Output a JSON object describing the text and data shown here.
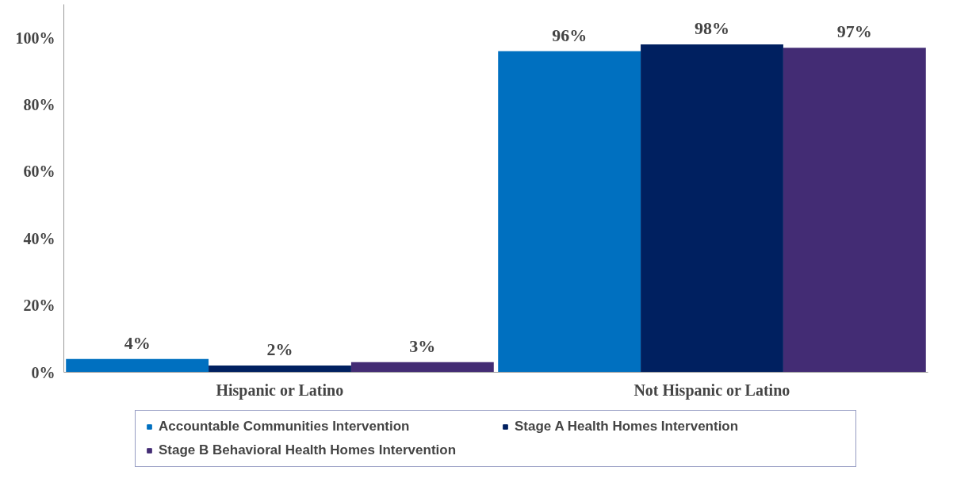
{
  "chart_data": {
    "type": "bar",
    "categories": [
      "Hispanic or Latino",
      "Not Hispanic or Latino"
    ],
    "series": [
      {
        "name": "Accountable Communities Intervention",
        "color": "#0070c0",
        "values": [
          4,
          96
        ]
      },
      {
        "name": "Stage A Health Homes Intervention",
        "color": "#002060",
        "values": [
          2,
          98
        ]
      },
      {
        "name": "Stage B Behavioral Health Homes Intervention",
        "color": "#432c74",
        "values": [
          3,
          97
        ]
      }
    ],
    "ylim": [
      0,
      110
    ],
    "yticks": [
      {
        "value": 0,
        "label": "0%"
      },
      {
        "value": 20,
        "label": "20%"
      },
      {
        "value": 40,
        "label": "40%"
      },
      {
        "value": 60,
        "label": "60%"
      },
      {
        "value": 80,
        "label": "80%"
      },
      {
        "value": 100,
        "label": "100%"
      }
    ],
    "value_labels": [
      [
        "4%",
        "96%"
      ],
      [
        "2%",
        "98%"
      ],
      [
        "3%",
        "97%"
      ]
    ],
    "grid": false,
    "legend": "bottom"
  }
}
